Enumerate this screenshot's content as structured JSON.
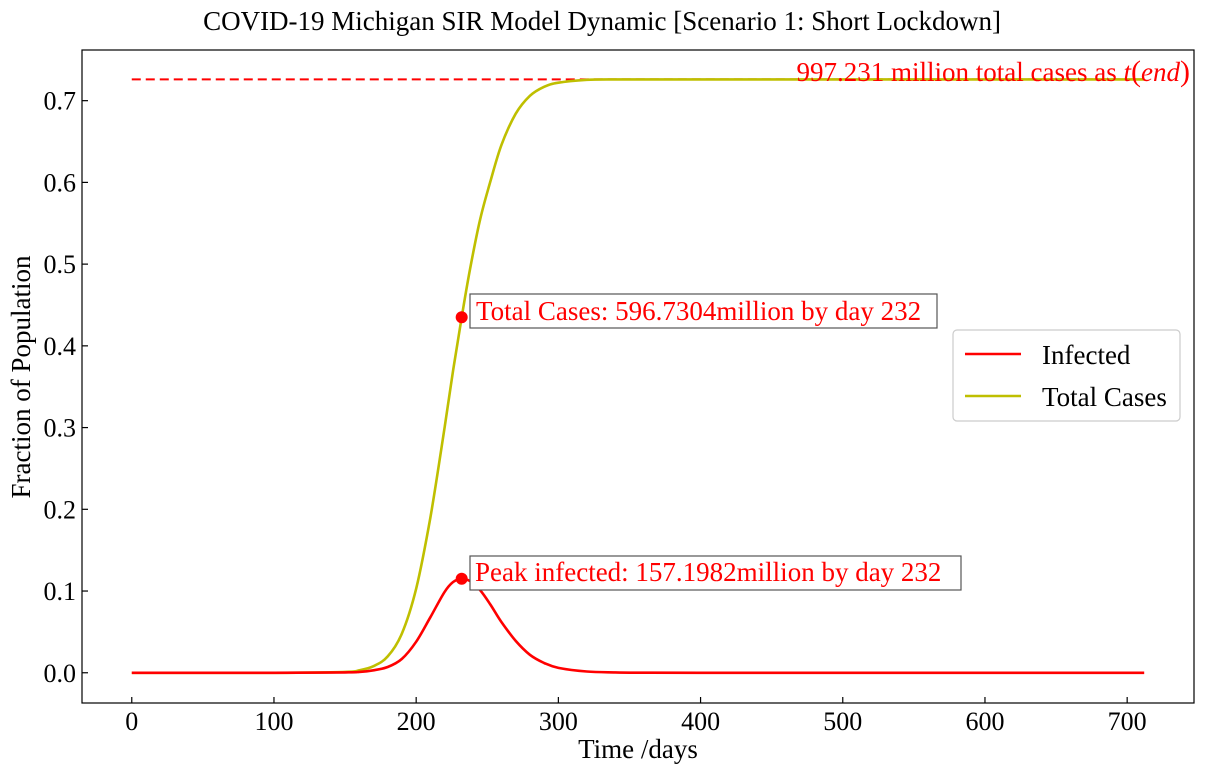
{
  "chart_data": {
    "type": "line",
    "title": "COVID-19 Michigan SIR Model Dynamic [Scenario 1: Short Lockdown]",
    "xlabel": "Time /days",
    "ylabel": "Fraction of Population",
    "xlim": [
      -35,
      747
    ],
    "ylim": [
      -0.037,
      0.762
    ],
    "xticks": [
      0,
      100,
      200,
      300,
      400,
      500,
      600,
      700
    ],
    "xtick_labels": [
      "0",
      "100",
      "200",
      "300",
      "400",
      "500",
      "600",
      "700"
    ],
    "yticks": [
      0.0,
      0.1,
      0.2,
      0.3,
      0.4,
      0.5,
      0.6,
      0.7
    ],
    "ytick_labels": [
      "0.0",
      "0.1",
      "0.2",
      "0.3",
      "0.4",
      "0.5",
      "0.6",
      "0.7"
    ],
    "grid": false,
    "legend_position": "center-right",
    "series": [
      {
        "name": "Infected",
        "color": "#ff0000",
        "x": [
          0,
          100,
          150,
          160,
          170,
          180,
          190,
          200,
          210,
          220,
          226,
          232,
          238,
          245,
          252,
          260,
          270,
          280,
          290,
          300,
          320,
          340,
          360,
          400,
          500,
          600,
          712
        ],
        "y": [
          0.0,
          0.0,
          0.0005,
          0.001,
          0.003,
          0.007,
          0.017,
          0.038,
          0.068,
          0.099,
          0.111,
          0.115,
          0.112,
          0.101,
          0.084,
          0.062,
          0.039,
          0.022,
          0.012,
          0.006,
          0.0015,
          0.0004,
          0.0001,
          0.0,
          0.0,
          0.0,
          0.0
        ]
      },
      {
        "name": "Total Cases",
        "color": "#bfbf00",
        "x": [
          0,
          100,
          150,
          160,
          170,
          180,
          190,
          200,
          210,
          220,
          226,
          232,
          238,
          245,
          252,
          260,
          270,
          280,
          290,
          300,
          320,
          340,
          360,
          400,
          500,
          600,
          712
        ],
        "y": [
          0.0,
          0.0,
          0.001,
          0.003,
          0.008,
          0.02,
          0.048,
          0.103,
          0.19,
          0.3,
          0.37,
          0.435,
          0.495,
          0.555,
          0.6,
          0.646,
          0.684,
          0.706,
          0.717,
          0.722,
          0.7255,
          0.726,
          0.726,
          0.726,
          0.726,
          0.726,
          0.726
        ]
      }
    ],
    "reference_line": {
      "y": 0.726,
      "x": [
        0,
        712
      ],
      "style": "dashed",
      "color": "#ff0000"
    },
    "annotations": {
      "total": {
        "text": "Total Cases: 596.7304million by day 232",
        "x": 232,
        "y": 0.435,
        "marker_color": "#ff0000"
      },
      "peak": {
        "text": "Peak infected: 157.1982million by day 232",
        "x": 232,
        "y": 0.115,
        "marker_color": "#ff0000"
      },
      "end_prefix": "997.231 million total cases as ",
      "end_math_t": "t",
      "end_math_open": "(",
      "end_math_arg": "end",
      "end_math_close": ")"
    }
  }
}
